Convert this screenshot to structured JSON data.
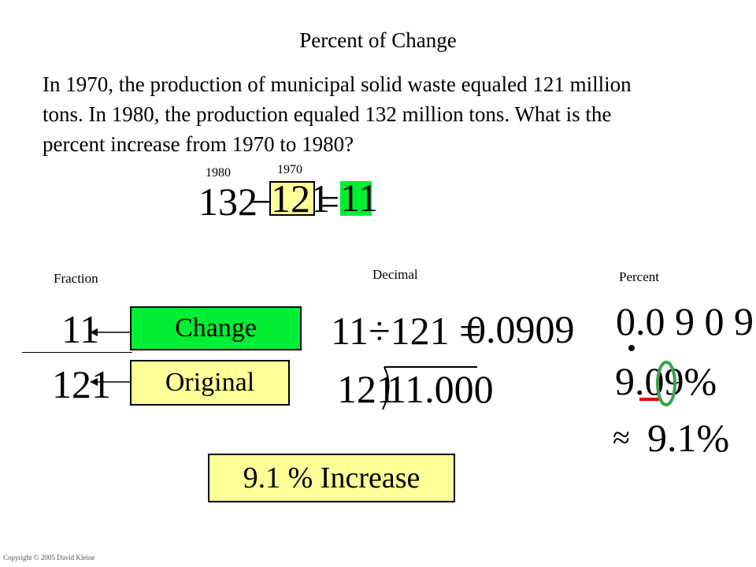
{
  "title": "Percent of Change",
  "problem": "In 1970, the production of municipal solid waste equaled 121 million tons. In 1980, the production equaled 132 million tons. What is the percent increase from 1970 to 1980?",
  "equation": {
    "label_a": "1980",
    "label_b": "1970",
    "a": "132",
    "minus": "−",
    "b": "121",
    "equals": "=",
    "result": "11"
  },
  "columns": {
    "fraction": "Fraction",
    "decimal": "Decimal",
    "percent": "Percent"
  },
  "fraction": {
    "numerator": "11",
    "denominator": "121",
    "change_label": "Change",
    "original_label": "Original"
  },
  "decimal": {
    "expression": "11÷121 =",
    "value": "0.0909",
    "divisor": "121",
    "dividend": "11.000"
  },
  "percent": {
    "digits": "0.0 9 0 9",
    "value": "9.09%",
    "approx_sign": "≈",
    "approx": "9.1%"
  },
  "answer": "9.1 % Increase",
  "copyright": "Copyright © 2005 David Kleine",
  "colors": {
    "yellow": "#ffff99",
    "green": "#00ee33",
    "red": "#e00000",
    "circle": "#3aa24a"
  }
}
